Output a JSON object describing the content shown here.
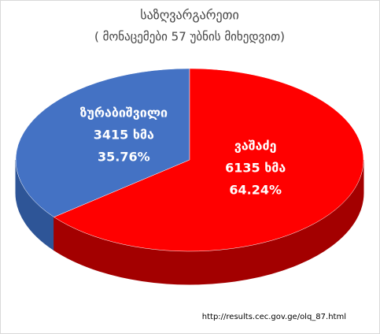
{
  "chart_data": {
    "type": "pie3d",
    "title": "საზღვარგარეთი",
    "subtitle": "( მონაცემები 57 უბნის მიხედვით)",
    "categories": [
      "ზურაბიშვილი",
      "ვაშაძე"
    ],
    "values": [
      35.76,
      64.24
    ],
    "value_labels": [
      "35.76%",
      "64.24%"
    ],
    "vote_labels": [
      "3415 ხმა",
      "6135 ხმა"
    ],
    "colors": [
      "#4472c4",
      "#ff0000"
    ],
    "source": "http://results.cec.gov.ge/olq_87.html"
  }
}
